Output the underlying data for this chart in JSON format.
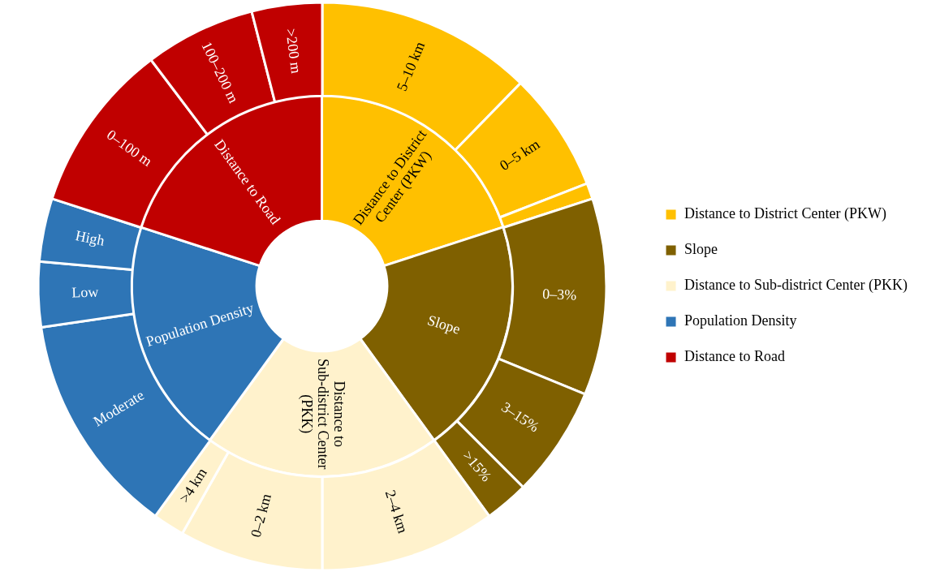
{
  "chart_data": [
    {
      "type": "donut",
      "legend": "right",
      "categories": [
        "Distance to District Center (PKW)",
        "Slope",
        "Distance to Sub-district Center (PKK)",
        "Population Density",
        "Distance to Road"
      ],
      "values": [
        20,
        20,
        20,
        20,
        20
      ],
      "colors": [
        "#ffc000",
        "#7f6000",
        "#fff2cc",
        "#2e75b6",
        "#c00000"
      ]
    },
    {
      "type": "donut",
      "categories": [
        "5–10 km",
        "0–5 km",
        null,
        "0–3%",
        "3–15%",
        ">15%",
        "2–4 km",
        "0–2 km",
        ">4 km",
        "Moderate",
        "Low",
        "High",
        "0–100 m",
        "100–200 m",
        ">200 m"
      ],
      "values": [
        12.3,
        6.8,
        0.9,
        11.2,
        6.3,
        2.5,
        10,
        8.2,
        1.8,
        12.7,
        3.7,
        3.6,
        9.7,
        6.3,
        4.0
      ],
      "colors": [
        "#ffc000",
        "#ffc000",
        "#ffc000",
        "#7f6000",
        "#7f6000",
        "#7f6000",
        "#fff2cc",
        "#fff2cc",
        "#fff2cc",
        "#2e75b6",
        "#2e75b6",
        "#2e75b6",
        "#c00000",
        "#c00000",
        "#c00000"
      ]
    }
  ]
}
